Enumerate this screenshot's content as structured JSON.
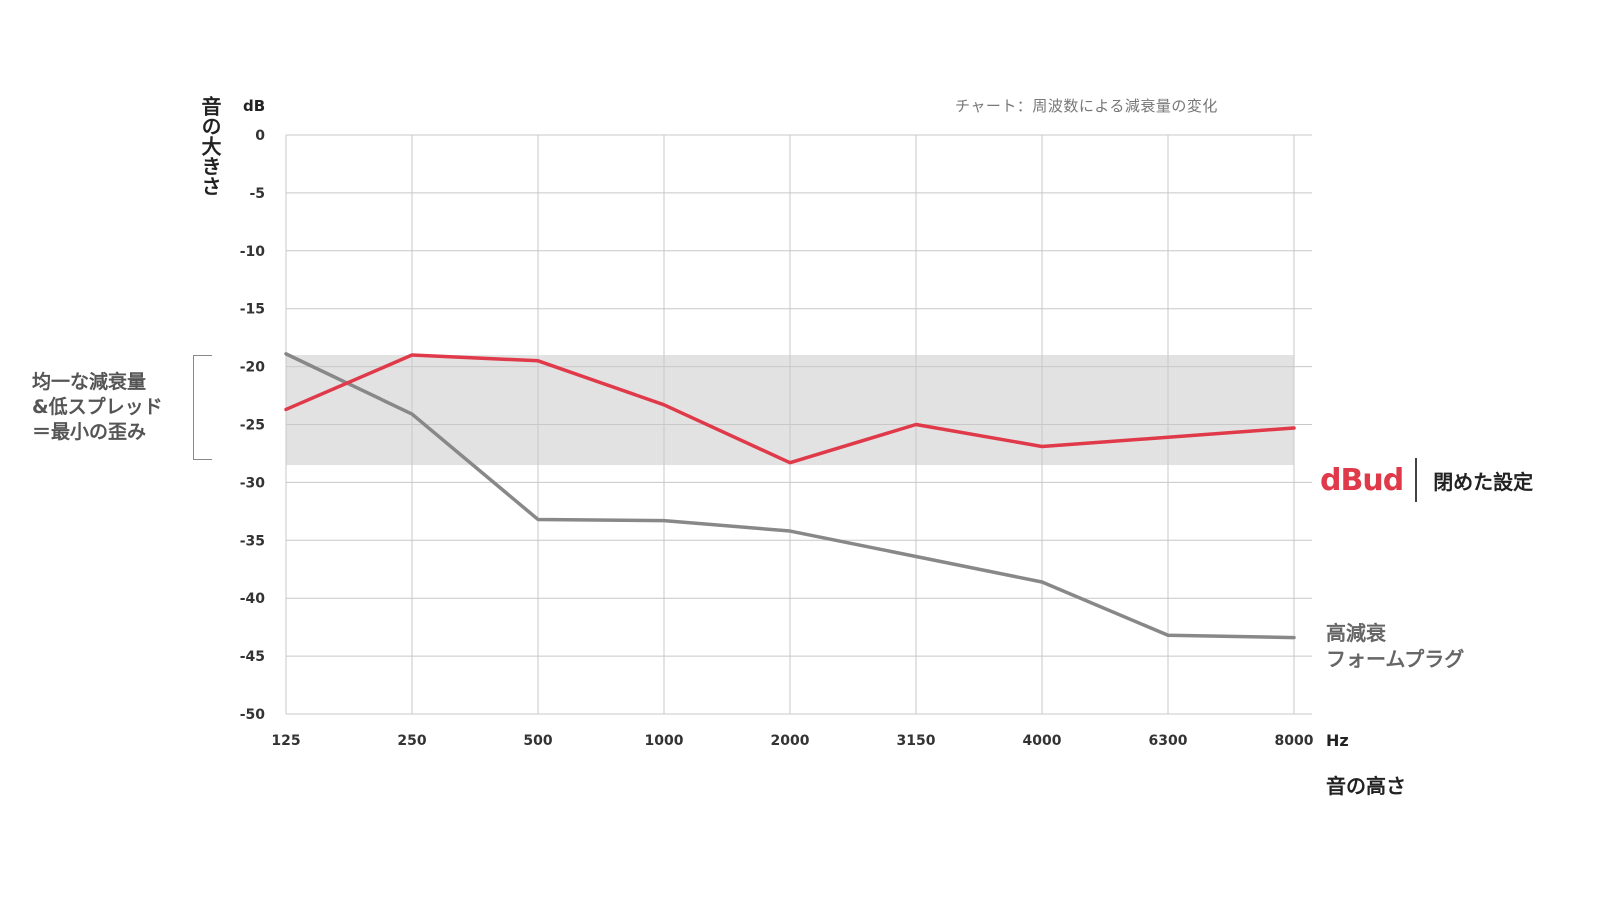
{
  "chart_data": {
    "type": "line",
    "title": "チャート：周波数による減衰量の変化",
    "ylabel": "音の大きさ",
    "yunit": "dB",
    "xlabel": "音の高さ",
    "xunit": "Hz",
    "categories": [
      "125",
      "250",
      "500",
      "1000",
      "2000",
      "3150",
      "4000",
      "6300",
      "8000"
    ],
    "yticks": [
      "0",
      "-5",
      "-10",
      "-15",
      "-20",
      "-25",
      "-30",
      "-35",
      "-40",
      "-45",
      "-50"
    ],
    "ylim": [
      -50,
      0
    ],
    "grid": true,
    "band": {
      "from": -19,
      "to": -28.5,
      "note": [
        "均一な減衰量",
        "&低スプレッド",
        "＝最小の歪み"
      ]
    },
    "series": [
      {
        "name": "dBud 閉めた設定",
        "color": "#e03a4a",
        "values": [
          -23.7,
          -19,
          -19.5,
          -23.3,
          -28.3,
          -25,
          -26.9,
          -26.1,
          -25.3
        ]
      },
      {
        "name": "高減衰 フォームプラグ",
        "color": "#888888",
        "values": [
          -18.9,
          -24.1,
          -33.2,
          -33.3,
          -34.2,
          -36.4,
          -38.6,
          -43.2,
          -43.4
        ]
      }
    ]
  },
  "legend": {
    "dbud_brand": "dBud",
    "dbud_label": "閉めた設定",
    "foam_lines": [
      "高減衰",
      "フォームプラグ"
    ]
  }
}
